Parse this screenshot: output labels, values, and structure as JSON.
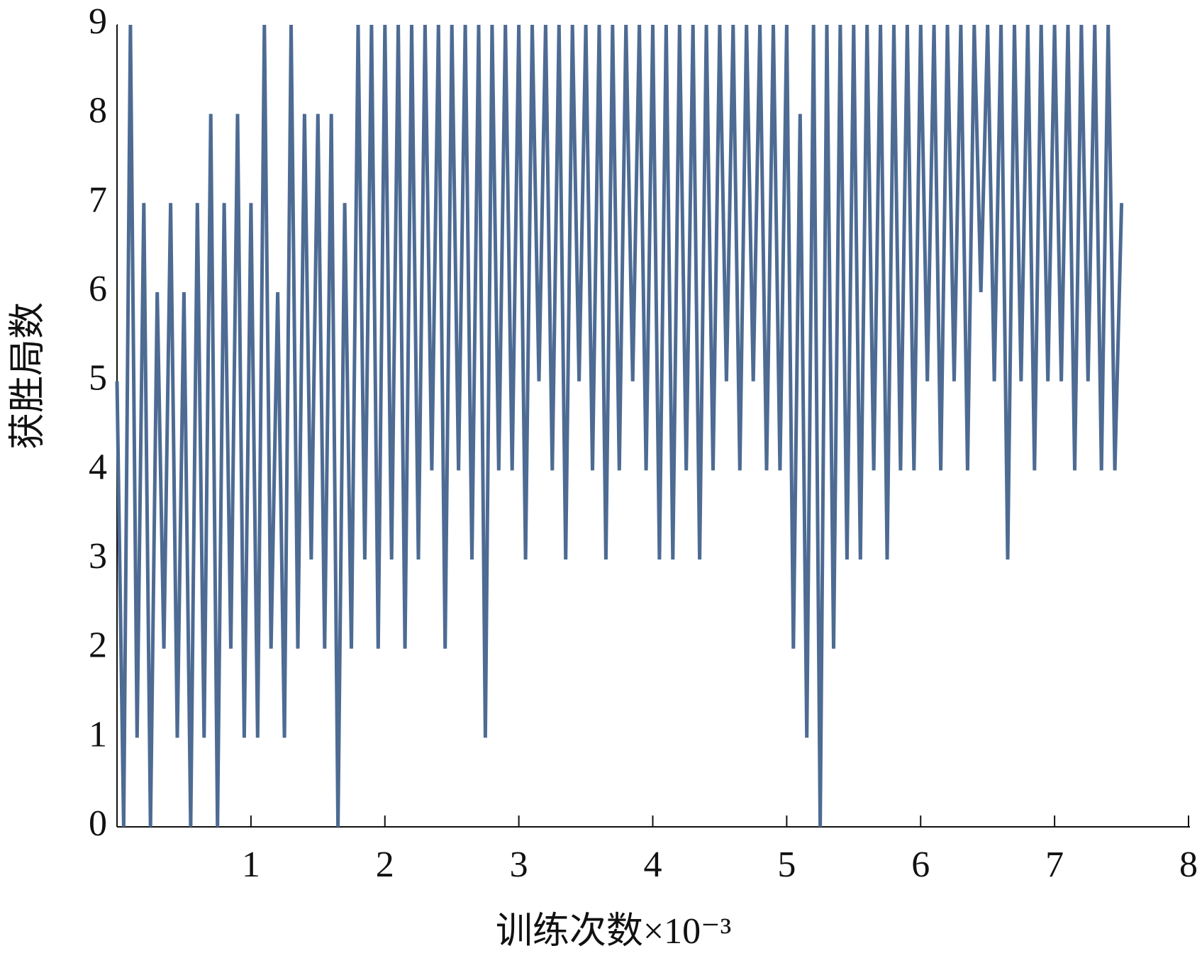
{
  "chart_data": {
    "type": "line",
    "xlabel": "训练次数×10⁻³",
    "ylabel": "获胜局数",
    "xlim": [
      0,
      8
    ],
    "ylim": [
      0,
      9
    ],
    "xticks": [
      1,
      2,
      3,
      4,
      5,
      6,
      7,
      8
    ],
    "yticks": [
      0,
      1,
      2,
      3,
      4,
      5,
      6,
      7,
      8,
      9
    ],
    "grid": false,
    "series": [
      {
        "color": "#4d6b93",
        "x": [
          0,
          0.05,
          0.1,
          0.15,
          0.2,
          0.25,
          0.3,
          0.35,
          0.4,
          0.45,
          0.5,
          0.55,
          0.6,
          0.65,
          0.7,
          0.75,
          0.8,
          0.85,
          0.9,
          0.95,
          1,
          1.05,
          1.1,
          1.15,
          1.2,
          1.25,
          1.3,
          1.35,
          1.4,
          1.45,
          1.5,
          1.55,
          1.6,
          1.65,
          1.7,
          1.75,
          1.8,
          1.85,
          1.9,
          1.95,
          2,
          2.05,
          2.1,
          2.15,
          2.2,
          2.25,
          2.3,
          2.35,
          2.4,
          2.45,
          2.5,
          2.55,
          2.6,
          2.65,
          2.7,
          2.75,
          2.8,
          2.85,
          2.9,
          2.95,
          3,
          3.05,
          3.1,
          3.15,
          3.2,
          3.25,
          3.3,
          3.35,
          3.4,
          3.45,
          3.5,
          3.55,
          3.6,
          3.65,
          3.7,
          3.75,
          3.8,
          3.85,
          3.9,
          3.95,
          4,
          4.05,
          4.1,
          4.15,
          4.2,
          4.25,
          4.3,
          4.35,
          4.4,
          4.45,
          4.5,
          4.55,
          4.6,
          4.65,
          4.7,
          4.75,
          4.8,
          4.85,
          4.9,
          4.95,
          5,
          5.05,
          5.1,
          5.15,
          5.2,
          5.25,
          5.3,
          5.35,
          5.4,
          5.45,
          5.5,
          5.55,
          5.6,
          5.65,
          5.7,
          5.75,
          5.8,
          5.85,
          5.9,
          5.95,
          6,
          6.05,
          6.1,
          6.15,
          6.2,
          6.25,
          6.3,
          6.35,
          6.4,
          6.45,
          6.5,
          6.55,
          6.6,
          6.65,
          6.7,
          6.75,
          6.8,
          6.85,
          6.9,
          6.95,
          7,
          7.05,
          7.1,
          7.15,
          7.2,
          7.25,
          7.3,
          7.35,
          7.4,
          7.45,
          7.5
        ],
        "values": [
          5,
          0,
          9,
          1,
          7,
          0,
          6,
          2,
          7,
          1,
          6,
          0,
          7,
          1,
          8,
          0,
          7,
          2,
          8,
          1,
          7,
          1,
          9,
          2,
          6,
          1,
          9,
          2,
          8,
          3,
          8,
          2,
          8,
          0,
          7,
          2,
          9,
          3,
          9,
          2,
          9,
          3,
          9,
          2,
          9,
          3,
          9,
          4,
          9,
          2,
          9,
          4,
          9,
          3,
          9,
          1,
          9,
          4,
          9,
          4,
          9,
          3,
          9,
          5,
          9,
          4,
          9,
          3,
          9,
          5,
          9,
          4,
          9,
          3,
          9,
          4,
          9,
          5,
          9,
          4,
          9,
          3,
          9,
          3,
          9,
          4,
          9,
          3,
          9,
          4,
          9,
          5,
          9,
          4,
          9,
          5,
          9,
          4,
          9,
          4,
          9,
          2,
          8,
          1,
          9,
          0,
          9,
          2,
          9,
          3,
          9,
          3,
          9,
          4,
          9,
          3,
          9,
          4,
          9,
          4,
          9,
          5,
          9,
          4,
          9,
          5,
          9,
          4,
          9,
          6,
          9,
          5,
          9,
          3,
          9,
          5,
          9,
          4,
          9,
          5,
          9,
          5,
          9,
          4,
          9,
          5,
          9,
          4,
          9,
          4,
          7
        ]
      }
    ]
  }
}
